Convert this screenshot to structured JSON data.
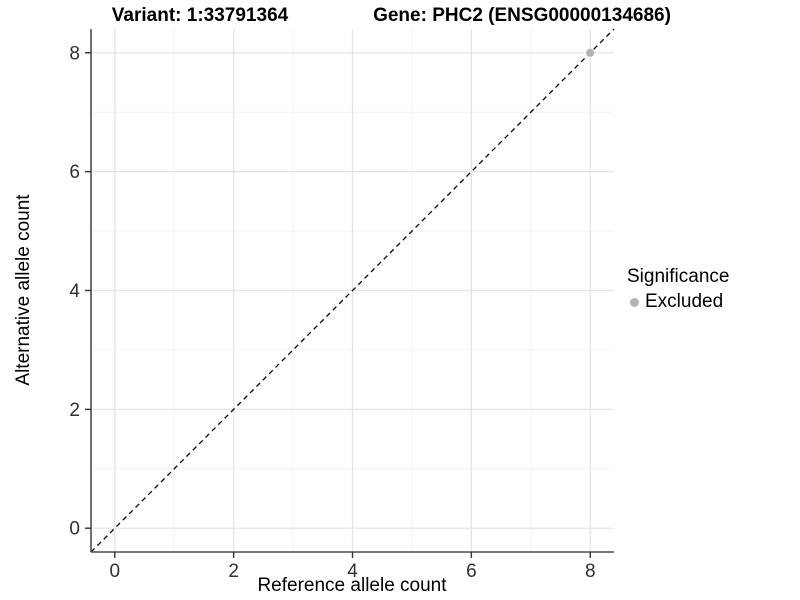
{
  "titles": {
    "left": "Variant: 1:33791364",
    "right": "Gene: PHC2 (ENSG00000134686)"
  },
  "axes": {
    "x_label": "Reference allele count",
    "y_label": "Alternative allele count"
  },
  "legend": {
    "title": "Significance",
    "items": [
      {
        "label": "Excluded",
        "color": "#b4b4b4"
      }
    ]
  },
  "colors": {
    "background": "#ffffff",
    "grid_major": "#e4e4e4",
    "grid_minor": "#f2f2f2",
    "axis_line": "#4d4d4d",
    "tick_mark": "#333333",
    "tick_text": "#303030",
    "reference_line": "#000000",
    "point": "#b4b4b4"
  },
  "chart_data": {
    "type": "scatter",
    "title": "Variant: 1:33791364 / Gene: PHC2 (ENSG00000134686)",
    "xlabel": "Reference allele count",
    "ylabel": "Alternative allele count",
    "xlim": [
      -0.4,
      8.4
    ],
    "ylim": [
      -0.4,
      8.4
    ],
    "x_ticks": [
      0,
      2,
      4,
      6,
      8
    ],
    "y_ticks": [
      0,
      2,
      4,
      6,
      8
    ],
    "x_minor_ticks": [
      1,
      3,
      5,
      7
    ],
    "y_minor_ticks": [
      1,
      3,
      5,
      7
    ],
    "grid": true,
    "legend_position": "right",
    "legend_title": "Significance",
    "series": [
      {
        "name": "Excluded",
        "color": "#b4b4b4",
        "points": [
          {
            "x": 8,
            "y": 8
          }
        ]
      }
    ],
    "reference_line": {
      "kind": "abline",
      "slope": 1,
      "intercept": 0,
      "style": "dashed",
      "color": "#000000"
    }
  }
}
